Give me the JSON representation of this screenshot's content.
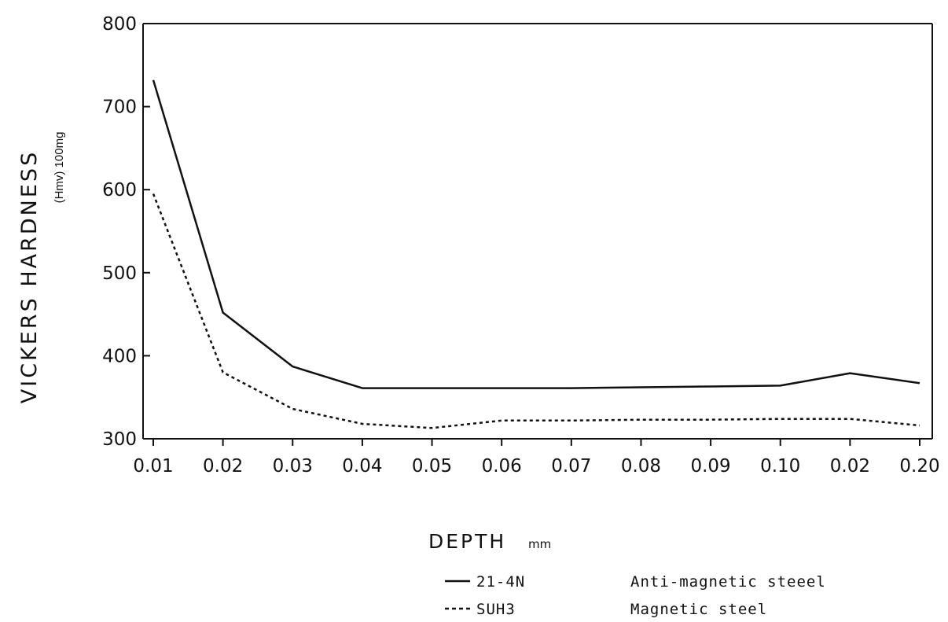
{
  "chart_data": {
    "type": "line",
    "title": "",
    "ylabel": "VICKERS HARDNESS",
    "ylabel_unit": "(Hmv) 100mg",
    "xlabel": "DEPTH",
    "xlabel_unit": "mm",
    "categories": [
      "0.01",
      "0.02",
      "0.03",
      "0.04",
      "0.05",
      "0.06",
      "0.07",
      "0.08",
      "0.09",
      "0.10",
      "0.02",
      "0.20"
    ],
    "y_ticks": [
      "300",
      "400",
      "500",
      "600",
      "700",
      "800"
    ],
    "ylim": [
      300,
      800
    ],
    "grid": false,
    "legend_placement": "bottom",
    "series": [
      {
        "name": "21-4N",
        "description": "Anti-magnetic steeel",
        "line_style": "solid",
        "color": "#111111",
        "values": [
          732,
          452,
          387,
          361,
          361,
          361,
          361,
          362,
          363,
          364,
          379,
          367
        ]
      },
      {
        "name": "SUH3",
        "description": "Magnetic steel",
        "line_style": "dotted",
        "color": "#111111",
        "values": [
          595,
          380,
          336,
          318,
          313,
          322,
          322,
          323,
          323,
          324,
          324,
          316
        ]
      }
    ]
  }
}
